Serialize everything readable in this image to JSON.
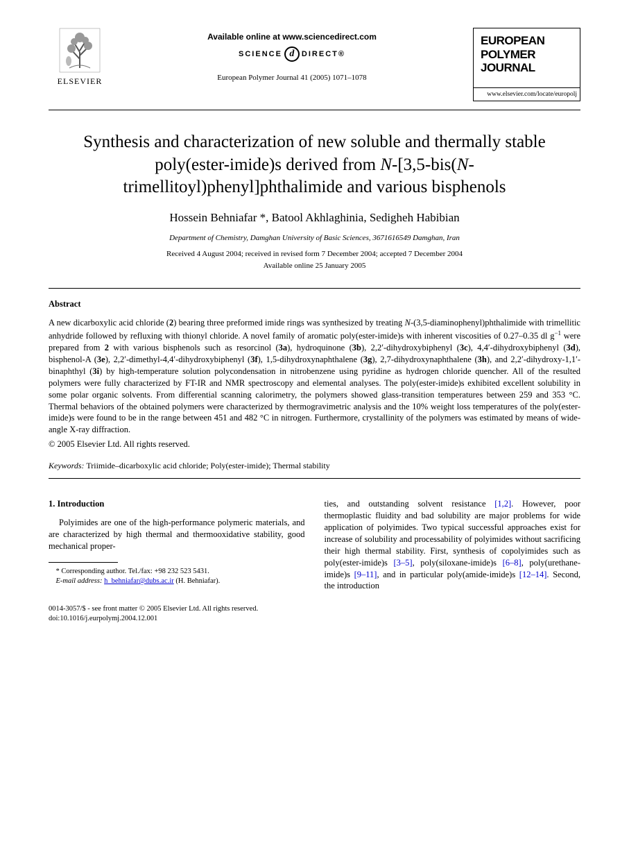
{
  "header": {
    "publisher_name": "ELSEVIER",
    "available_online": "Available online at www.sciencedirect.com",
    "sd_left": "SCIENCE",
    "sd_glyph": "d",
    "sd_right": "DIRECT®",
    "citation": "European Polymer Journal 41 (2005) 1071–1078",
    "journal_line1": "EUROPEAN",
    "journal_line2": "POLYMER",
    "journal_line3": "JOURNAL",
    "journal_url": "www.elsevier.com/locate/europolj"
  },
  "article": {
    "title_html": "Synthesis and characterization of new soluble and thermally stable poly(ester-imide)s derived from <i>N</i>-[3,5-bis(<i>N</i>-trimellitoyl)phenyl]phthalimide and various bisphenols",
    "authors_html": "Hossein Behniafar *, Batool Akhlaghinia, Sedigheh Habibian",
    "affiliation": "Department of Chemistry, Damghan University of Basic Sciences, 3671616549 Damghan, Iran",
    "dates": "Received 4 August 2004; received in revised form 7 December 2004; accepted 7 December 2004",
    "online_date": "Available online 25 January 2005"
  },
  "abstract": {
    "heading": "Abstract",
    "body_html": "A new dicarboxylic acid chloride (<b>2</b>) bearing three preformed imide rings was synthesized by treating <i>N</i>-(3,5-diaminophenyl)phthalimide with trimellitic anhydride followed by refluxing with thionyl chloride. A novel family of aromatic poly(ester-imide)s with inherent viscosities of 0.27–0.35 dl g<sup>−1</sup> were prepared from <b>2</b> with various bisphenols such as resorcinol (<b>3a</b>), hydroquinone (<b>3b</b>), 2,2′-dihydroxybiphenyl (<b>3c</b>), 4,4′-dihydroxybiphenyl (<b>3d</b>), bisphenol-A (<b>3e</b>), 2,2′-dimethyl-4,4′-dihydroxybiphenyl (<b>3f</b>), 1,5-dihydroxynaphthalene (<b>3g</b>), 2,7-dihydroxynaphthalene (<b>3h</b>), and 2,2′-dihydroxy-1,1′-binaphthyl (<b>3i</b>) by high-temperature solution polycondensation in nitrobenzene using pyridine as hydrogen chloride quencher. All of the resulted polymers were fully characterized by FT-IR and NMR spectroscopy and elemental analyses. The poly(ester-imide)s exhibited excellent solubility in some polar organic solvents. From differential scanning calorimetry, the polymers showed glass-transition temperatures between 259 and 353 °C. Thermal behaviors of the obtained polymers were characterized by thermogravimetric analysis and the 10% weight loss temperatures of the poly(ester-imide)s were found to be in the range between 451 and 482 °C in nitrogen. Furthermore, crystallinity of the polymers was estimated by means of wide-angle X-ray diffraction.",
    "copyright": "© 2005 Elsevier Ltd. All rights reserved."
  },
  "keywords": {
    "label": "Keywords:",
    "text": " Triimide–dicarboxylic acid chloride; Poly(ester-imide); Thermal stability"
  },
  "intro": {
    "heading": "1. Introduction",
    "col1_html": "Polyimides are one of the high-performance polymeric materials, and are characterized by high thermal and thermooxidative stability, good mechanical proper-",
    "col2_html": "ties, and outstanding solvent resistance <span class=\"ref-link\">[1,2]</span>. However, poor thermoplastic fluidity and bad solubility are major problems for wide application of polyimides. Two typical successful approaches exist for increase of solubility and processability of polyimides without sacrificing their high thermal stability. First, synthesis of copolyimides such as poly(ester-imide)s <span class=\"ref-link\">[3–5]</span>, poly(siloxane-imide)s <span class=\"ref-link\">[6–8]</span>, poly(urethane-imide)s <span class=\"ref-link\">[9–11]</span>, and in particular poly(amide-imide)s <span class=\"ref-link\">[12–14]</span>. Second, the introduction"
  },
  "footnote": {
    "corr": "* Corresponding author. Tel./fax: +98 232 523 5431.",
    "email_label": "E-mail address:",
    "email": "h_behniafar@dubs.ac.ir",
    "email_author": " (H. Behniafar)."
  },
  "doi": {
    "line1": "0014-3057/$ - see front matter © 2005 Elsevier Ltd. All rights reserved.",
    "line2": "doi:10.1016/j.eurpolymj.2004.12.001"
  }
}
